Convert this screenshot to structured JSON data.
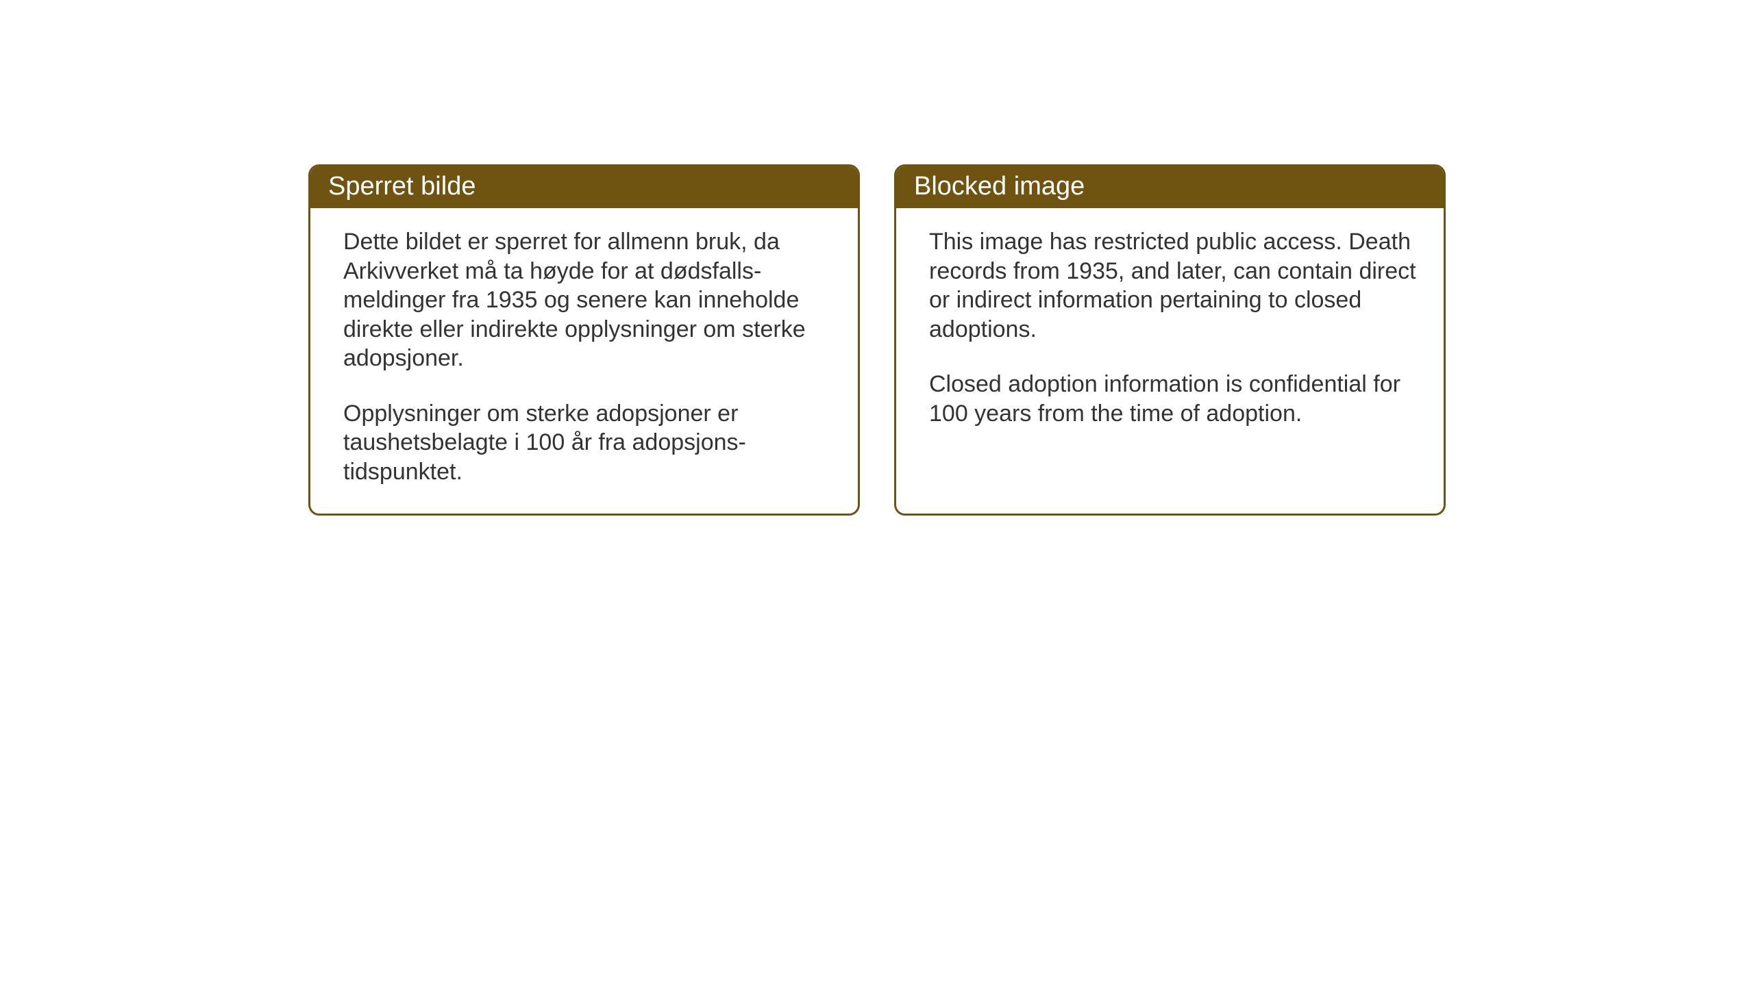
{
  "layout": {
    "background_color": "#ffffff",
    "card_border_color": "#6f5411",
    "card_header_bg": "#6f5411",
    "card_header_text_color": "#ffffff",
    "body_text_color": "#333333",
    "header_fontsize": 38,
    "body_fontsize": 34
  },
  "cards": {
    "left": {
      "title": "Sperret bilde",
      "paragraph1": "Dette bildet er sperret for allmenn bruk, da Arkivverket må ta høyde for at dødsfalls-meldinger fra 1935 og senere kan inneholde direkte eller indirekte opplysninger om sterke adopsjoner.",
      "paragraph2": "Opplysninger om sterke adopsjoner er taushetsbelagte i 100 år fra adopsjons-tidspunktet."
    },
    "right": {
      "title": "Blocked image",
      "paragraph1": "This image has restricted public access. Death records from 1935, and later, can contain direct or indirect information pertaining to closed adoptions.",
      "paragraph2": "Closed adoption information is confidential for 100 years from the time of adoption."
    }
  }
}
